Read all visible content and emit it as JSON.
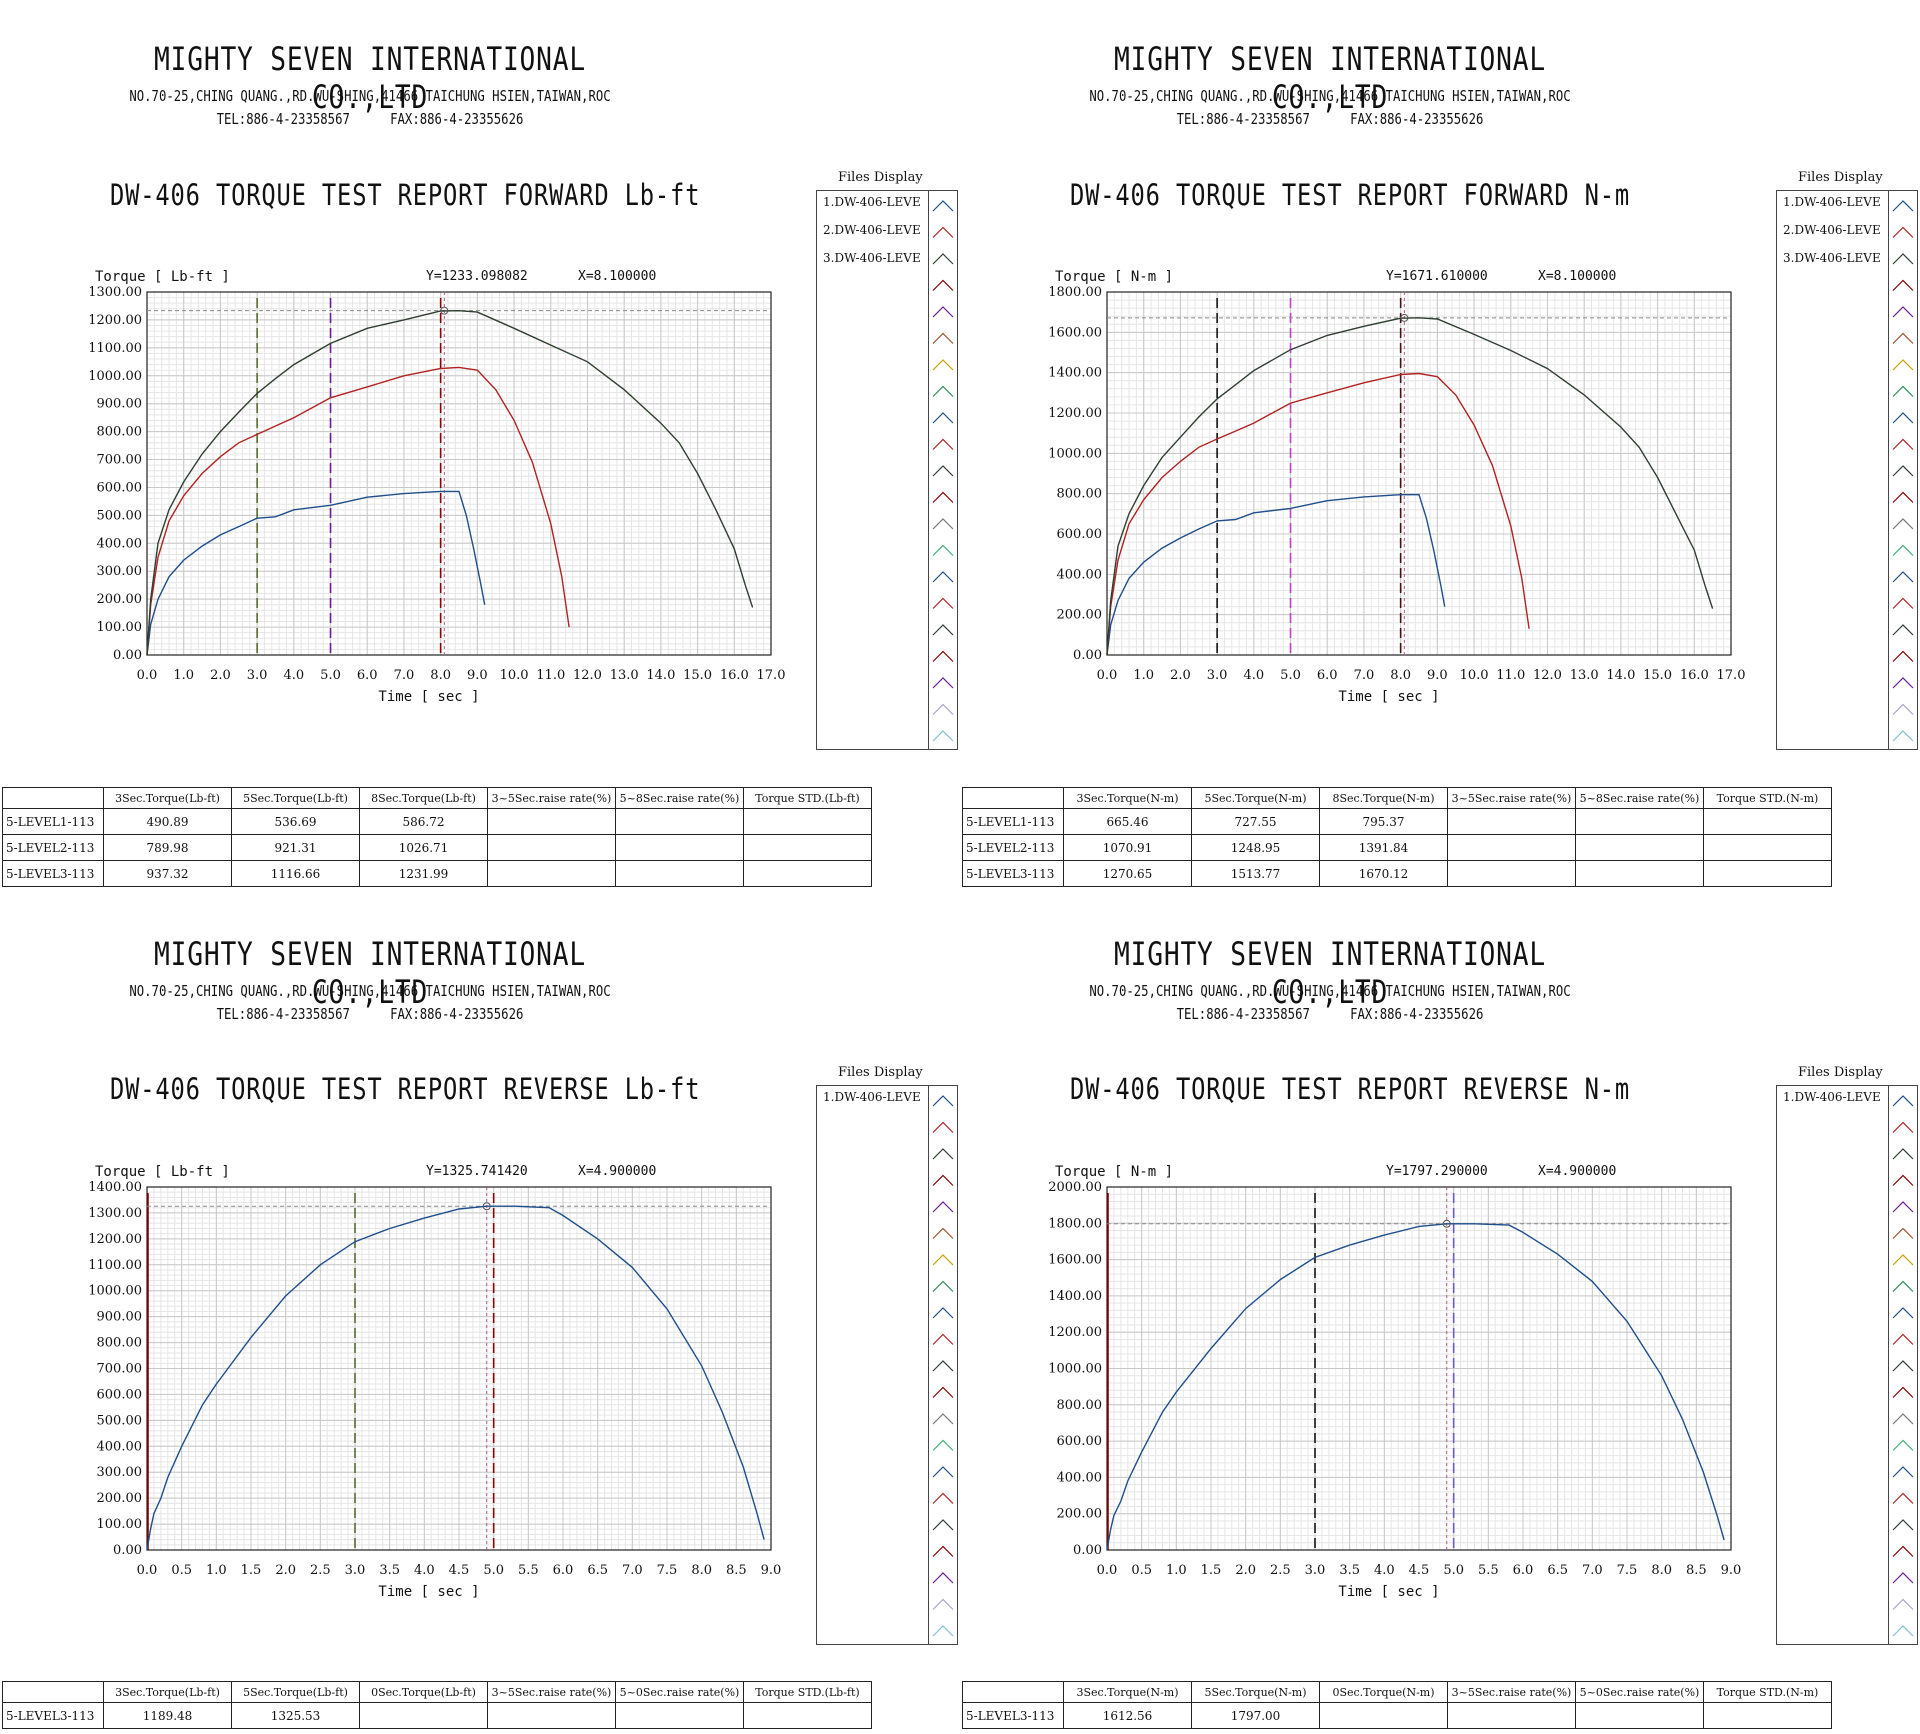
{
  "company": {
    "name": "MIGHTY SEVEN INTERNATIONAL CO.,LTD",
    "address": "NO.70-25,CHING QUANG.,RD.WU-SHING,41466 TAICHUNG HSIEN,TAIWAN,ROC",
    "tel": "TEL:886-4-23358567",
    "fax": "FAX:886-4-23355626"
  },
  "files_display_title": "Files Display",
  "time_axis_label": "Time [ sec ]",
  "panels": [
    {
      "title": "DW-406 TORQUE TEST REPORT FORWARD Lb-ft",
      "y_axis_label": "Torque [ Lb-ft ]",
      "cursor_y_text": "Y=1233.098082",
      "cursor_x_text": "X=8.100000",
      "files": [
        "1.DW-406-LEVE",
        "2.DW-406-LEVE",
        "3.DW-406-LEVE"
      ],
      "table": {
        "headers": [
          "3Sec.Torque(Lb-ft)",
          "5Sec.Torque(Lb-ft)",
          "8Sec.Torque(Lb-ft)",
          "3~5Sec.raise rate(%)",
          "5~8Sec.raise rate(%)",
          "Torque STD.(Lb-ft)"
        ],
        "rows": [
          {
            "name": "5-LEVEL1-113",
            "values": [
              "490.89",
              "536.69",
              "586.72",
              "",
              "",
              ""
            ]
          },
          {
            "name": "5-LEVEL2-113",
            "values": [
              "789.98",
              "921.31",
              "1026.71",
              "",
              "",
              ""
            ]
          },
          {
            "name": "5-LEVEL3-113",
            "values": [
              "937.32",
              "1116.66",
              "1231.99",
              "",
              "",
              ""
            ]
          }
        ]
      }
    },
    {
      "title": "DW-406 TORQUE TEST REPORT FORWARD N-m",
      "y_axis_label": "Torque [ N-m ]",
      "cursor_y_text": "Y=1671.610000",
      "cursor_x_text": "X=8.100000",
      "files": [
        "1.DW-406-LEVE",
        "2.DW-406-LEVE",
        "3.DW-406-LEVE"
      ],
      "table": {
        "headers": [
          "3Sec.Torque(N-m)",
          "5Sec.Torque(N-m)",
          "8Sec.Torque(N-m)",
          "3~5Sec.raise rate(%)",
          "5~8Sec.raise rate(%)",
          "Torque STD.(N-m)"
        ],
        "rows": [
          {
            "name": "5-LEVEL1-113",
            "values": [
              "665.46",
              "727.55",
              "795.37",
              "",
              "",
              ""
            ]
          },
          {
            "name": "5-LEVEL2-113",
            "values": [
              "1070.91",
              "1248.95",
              "1391.84",
              "",
              "",
              ""
            ]
          },
          {
            "name": "5-LEVEL3-113",
            "values": [
              "1270.65",
              "1513.77",
              "1670.12",
              "",
              "",
              ""
            ]
          }
        ]
      }
    },
    {
      "title": "DW-406 TORQUE TEST REPORT REVERSE Lb-ft",
      "y_axis_label": "Torque [ Lb-ft ]",
      "cursor_y_text": "Y=1325.741420",
      "cursor_x_text": "X=4.900000",
      "files": [
        "1.DW-406-LEVE"
      ],
      "table": {
        "headers": [
          "3Sec.Torque(Lb-ft)",
          "5Sec.Torque(Lb-ft)",
          "0Sec.Torque(Lb-ft)",
          "3~5Sec.raise rate(%)",
          "5~0Sec.raise rate(%)",
          "Torque STD.(Lb-ft)"
        ],
        "rows": [
          {
            "name": "5-LEVEL3-113",
            "values": [
              "1189.48",
              "1325.53",
              "",
              "",
              "",
              ""
            ]
          }
        ]
      }
    },
    {
      "title": "DW-406 TORQUE TEST REPORT REVERSE N-m",
      "y_axis_label": "Torque [ N-m ]",
      "cursor_y_text": "Y=1797.290000",
      "cursor_x_text": "X=4.900000",
      "files": [
        "1.DW-406-LEVE"
      ],
      "table": {
        "headers": [
          "3Sec.Torque(N-m)",
          "5Sec.Torque(N-m)",
          "0Sec.Torque(N-m)",
          "3~5Sec.raise rate(%)",
          "5~0Sec.raise rate(%)",
          "Torque STD.(N-m)"
        ],
        "rows": [
          {
            "name": "5-LEVEL3-113",
            "values": [
              "1612.56",
              "1797.00",
              "",
              "",
              "",
              ""
            ]
          }
        ]
      }
    }
  ],
  "chart_data": [
    {
      "type": "line",
      "title": "DW-406 TORQUE TEST REPORT FORWARD Lb-ft",
      "xlabel": "Time [ sec ]",
      "ylabel": "Torque [ Lb-ft ]",
      "xlim": [
        0,
        17
      ],
      "ylim": [
        0,
        1300
      ],
      "xticks": [
        "0.0",
        "1.0",
        "2.0",
        "3.0",
        "4.0",
        "5.0",
        "6.0",
        "7.0",
        "8.0",
        "9.0",
        "10.0",
        "11.0",
        "12.0",
        "13.0",
        "14.0",
        "15.0",
        "16.0",
        "17.0"
      ],
      "yticks": [
        "0.00",
        "100.00",
        "200.00",
        "300.00",
        "400.00",
        "500.00",
        "600.00",
        "700.00",
        "800.00",
        "900.00",
        "1000.00",
        "1100.00",
        "1200.00",
        "1300.00"
      ],
      "grid": true,
      "cursor": {
        "x": 8.1,
        "y": 1233.1
      },
      "vlines": [
        {
          "x": 3.0,
          "color": "#556b2f"
        },
        {
          "x": 5.0,
          "color": "#6a1b9a"
        },
        {
          "x": 8.0,
          "color": "#8b0000"
        }
      ],
      "series": [
        {
          "color": "#1f4e8c",
          "x": [
            0,
            0.1,
            0.3,
            0.6,
            1,
            1.5,
            2,
            2.5,
            3,
            3.5,
            4,
            5,
            6,
            7,
            8,
            8.5,
            8.7,
            8.9,
            9.1,
            9.2
          ],
          "y": [
            0,
            110,
            200,
            280,
            340,
            390,
            430,
            460,
            490,
            495,
            520,
            536,
            565,
            578,
            586,
            586,
            500,
            380,
            250,
            180
          ]
        },
        {
          "color": "#b22222",
          "x": [
            0,
            0.1,
            0.3,
            0.6,
            1,
            1.5,
            2,
            2.5,
            3,
            3.5,
            4,
            5,
            6,
            7,
            8,
            8.5,
            9,
            9.5,
            10,
            10.5,
            11,
            11.3,
            11.5
          ],
          "y": [
            0,
            180,
            350,
            480,
            570,
            650,
            710,
            760,
            790,
            820,
            850,
            921,
            960,
            1000,
            1026,
            1030,
            1020,
            950,
            840,
            690,
            470,
            280,
            100
          ]
        },
        {
          "color": "#2f3f2f",
          "x": [
            0,
            0.1,
            0.3,
            0.6,
            1,
            1.5,
            2,
            2.5,
            3,
            3.5,
            4,
            5,
            6,
            7,
            8,
            8.5,
            9,
            10,
            11,
            12,
            13,
            14,
            14.5,
            15,
            15.5,
            16,
            16.3,
            16.5
          ],
          "y": [
            0,
            200,
            400,
            520,
            620,
            720,
            800,
            870,
            937,
            990,
            1040,
            1116,
            1170,
            1200,
            1232,
            1233,
            1228,
            1170,
            1110,
            1050,
            950,
            830,
            760,
            650,
            520,
            380,
            250,
            170
          ]
        }
      ]
    },
    {
      "type": "line",
      "title": "DW-406 TORQUE TEST REPORT FORWARD N-m",
      "xlabel": "Time [ sec ]",
      "ylabel": "Torque [ N-m ]",
      "xlim": [
        0,
        17
      ],
      "ylim": [
        0,
        1800
      ],
      "xticks": [
        "0.0",
        "1.0",
        "2.0",
        "3.0",
        "4.0",
        "5.0",
        "6.0",
        "7.0",
        "8.0",
        "9.0",
        "10.0",
        "11.0",
        "12.0",
        "13.0",
        "14.0",
        "15.0",
        "16.0",
        "17.0"
      ],
      "yticks": [
        "0.00",
        "200.00",
        "400.00",
        "600.00",
        "800.00",
        "1000.00",
        "1200.00",
        "1400.00",
        "1600.00",
        "1800.00"
      ],
      "grid": true,
      "cursor": {
        "x": 8.1,
        "y": 1671.6
      },
      "vlines": [
        {
          "x": 3.0,
          "color": "#111111"
        },
        {
          "x": 5.0,
          "color": "#c040c0"
        },
        {
          "x": 8.0,
          "color": "#4a1010"
        }
      ],
      "series": [
        {
          "color": "#1f4e8c",
          "x": [
            0,
            0.1,
            0.3,
            0.6,
            1,
            1.5,
            2,
            2.5,
            3,
            3.5,
            4,
            5,
            6,
            7,
            8,
            8.5,
            8.7,
            8.9,
            9.1,
            9.2
          ],
          "y": [
            0,
            150,
            270,
            380,
            460,
            530,
            580,
            625,
            665,
            672,
            705,
            727,
            765,
            784,
            795,
            795,
            680,
            520,
            340,
            240
          ]
        },
        {
          "color": "#b22222",
          "x": [
            0,
            0.1,
            0.3,
            0.6,
            1,
            1.5,
            2,
            2.5,
            3,
            3.5,
            4,
            5,
            6,
            7,
            8,
            8.5,
            9,
            9.5,
            10,
            10.5,
            11,
            11.3,
            11.5
          ],
          "y": [
            0,
            240,
            470,
            650,
            770,
            880,
            960,
            1030,
            1071,
            1110,
            1150,
            1249,
            1300,
            1350,
            1391,
            1396,
            1380,
            1290,
            1140,
            940,
            640,
            380,
            130
          ]
        },
        {
          "color": "#2f3f2f",
          "x": [
            0,
            0.1,
            0.3,
            0.6,
            1,
            1.5,
            2,
            2.5,
            3,
            3.5,
            4,
            5,
            6,
            7,
            8,
            8.5,
            9,
            10,
            11,
            12,
            13,
            14,
            14.5,
            15,
            15.5,
            16,
            16.3,
            16.5
          ],
          "y": [
            0,
            270,
            540,
            700,
            840,
            980,
            1080,
            1180,
            1270,
            1340,
            1410,
            1514,
            1585,
            1630,
            1670,
            1672,
            1666,
            1590,
            1510,
            1420,
            1290,
            1130,
            1030,
            880,
            700,
            520,
            340,
            230
          ]
        }
      ]
    },
    {
      "type": "line",
      "title": "DW-406 TORQUE TEST REPORT REVERSE Lb-ft",
      "xlabel": "Time [ sec ]",
      "ylabel": "Torque [ Lb-ft ]",
      "xlim": [
        0,
        9
      ],
      "ylim": [
        0,
        1400
      ],
      "xticks": [
        "0.0",
        "0.5",
        "1.0",
        "1.5",
        "2.0",
        "2.5",
        "3.0",
        "3.5",
        "4.0",
        "4.5",
        "5.0",
        "5.5",
        "6.0",
        "6.5",
        "7.0",
        "7.5",
        "8.0",
        "8.5",
        "9.0"
      ],
      "yticks": [
        "0.00",
        "100.00",
        "200.00",
        "300.00",
        "400.00",
        "500.00",
        "600.00",
        "700.00",
        "800.00",
        "900.00",
        "1000.00",
        "1100.00",
        "1200.00",
        "1300.00",
        "1400.00"
      ],
      "grid": true,
      "cursor": {
        "x": 4.9,
        "y": 1325.7
      },
      "vlines": [
        {
          "x": 0.0,
          "color": "#8b0000"
        },
        {
          "x": 3.0,
          "color": "#556b2f"
        },
        {
          "x": 5.0,
          "color": "#8b0000"
        }
      ],
      "series": [
        {
          "color": "#1f4e8c",
          "x": [
            0,
            0.05,
            0.1,
            0.2,
            0.3,
            0.5,
            0.8,
            1,
            1.5,
            2,
            2.5,
            3,
            3.5,
            4,
            4.5,
            4.9,
            5.3,
            5.8,
            6,
            6.5,
            7,
            7.5,
            8,
            8.3,
            8.6,
            8.8,
            8.9
          ],
          "y": [
            0,
            80,
            140,
            200,
            280,
            400,
            560,
            640,
            820,
            980,
            1100,
            1189,
            1240,
            1280,
            1315,
            1326,
            1326,
            1320,
            1290,
            1200,
            1090,
            930,
            710,
            530,
            320,
            140,
            40
          ]
        }
      ]
    },
    {
      "type": "line",
      "title": "DW-406 TORQUE TEST REPORT REVERSE N-m",
      "xlabel": "Time [ sec ]",
      "ylabel": "Torque [ N-m ]",
      "xlim": [
        0,
        9
      ],
      "ylim": [
        0,
        2000
      ],
      "xticks": [
        "0.0",
        "0.5",
        "1.0",
        "1.5",
        "2.0",
        "2.5",
        "3.0",
        "3.5",
        "4.0",
        "4.5",
        "5.0",
        "5.5",
        "6.0",
        "6.5",
        "7.0",
        "7.5",
        "8.0",
        "8.5",
        "9.0"
      ],
      "yticks": [
        "0.00",
        "200.00",
        "400.00",
        "600.00",
        "800.00",
        "1000.00",
        "1200.00",
        "1400.00",
        "1600.00",
        "1800.00",
        "2000.00"
      ],
      "grid": true,
      "cursor": {
        "x": 4.9,
        "y": 1797.3
      },
      "vlines": [
        {
          "x": 0.0,
          "color": "#8b0000"
        },
        {
          "x": 3.0,
          "color": "#111111"
        },
        {
          "x": 5.0,
          "color": "#6a5acd"
        }
      ],
      "series": [
        {
          "color": "#1f4e8c",
          "x": [
            0,
            0.05,
            0.1,
            0.2,
            0.3,
            0.5,
            0.8,
            1,
            1.5,
            2,
            2.5,
            3,
            3.5,
            4,
            4.5,
            4.9,
            5.3,
            5.8,
            6,
            6.5,
            7,
            7.5,
            8,
            8.3,
            8.6,
            8.8,
            8.9
          ],
          "y": [
            0,
            110,
            190,
            270,
            380,
            540,
            760,
            870,
            1110,
            1330,
            1490,
            1612,
            1680,
            1735,
            1783,
            1797,
            1797,
            1790,
            1750,
            1630,
            1480,
            1260,
            960,
            720,
            430,
            190,
            55
          ]
        }
      ]
    }
  ]
}
